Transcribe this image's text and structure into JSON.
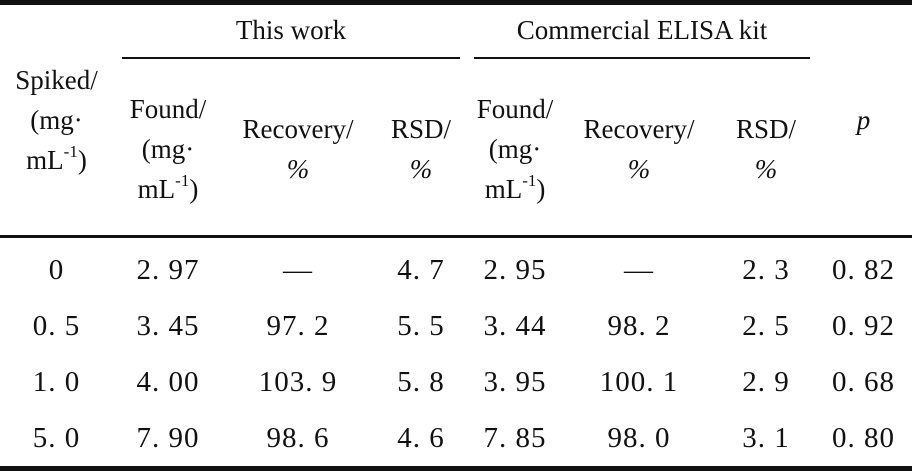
{
  "table": {
    "group_this_work": "This work",
    "group_commercial": "Commercial ELISA kit",
    "spiked_header": {
      "line1": "Spiked/",
      "line2": "(mg·",
      "line3_base": "mL",
      "line3_sup": "-1",
      "line3_end": ")"
    },
    "found_header": {
      "line1": "Found/",
      "line2": "(mg·",
      "line3_base": "mL",
      "line3_sup": "-1",
      "line3_end": ")"
    },
    "recovery_header": {
      "line1": "Recovery/",
      "line2": "%"
    },
    "rsd_header": {
      "line1": "RSD/",
      "line2": "%"
    },
    "p_header": "p",
    "rows": [
      {
        "spiked": "0",
        "found1": "2. 97",
        "recovery1": "—",
        "rsd1": "4. 7",
        "found2": "2. 95",
        "recovery2": "—",
        "rsd2": "2. 3",
        "p": "0. 82"
      },
      {
        "spiked": "0. 5",
        "found1": "3. 45",
        "recovery1": "97. 2",
        "rsd1": "5. 5",
        "found2": "3. 44",
        "recovery2": "98. 2",
        "rsd2": "2. 5",
        "p": "0. 92"
      },
      {
        "spiked": "1. 0",
        "found1": "4. 00",
        "recovery1": "103. 9",
        "rsd1": "5. 8",
        "found2": "3. 95",
        "recovery2": "100. 1",
        "rsd2": "2. 9",
        "p": "0. 68"
      },
      {
        "spiked": "5. 0",
        "found1": "7. 90",
        "recovery1": "98. 6",
        "rsd1": "4. 6",
        "found2": "7. 85",
        "recovery2": "98. 0",
        "rsd2": "3. 1",
        "p": "0. 80"
      }
    ]
  }
}
